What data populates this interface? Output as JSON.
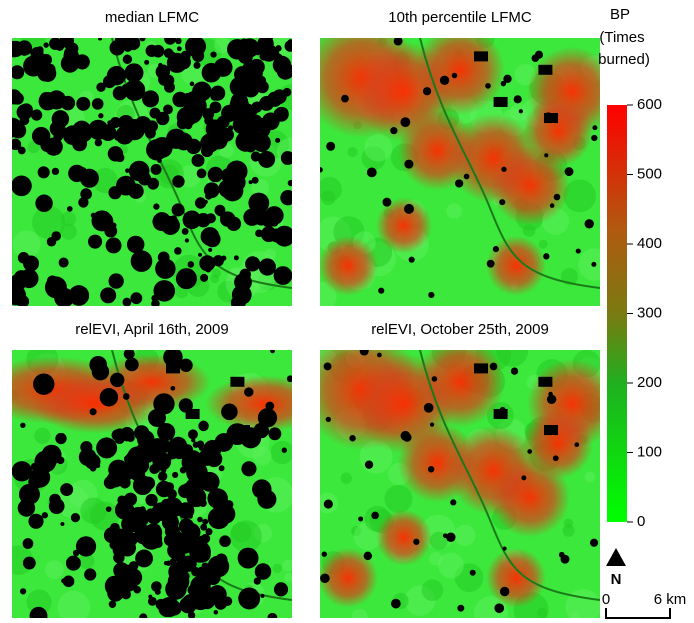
{
  "panels": [
    {
      "title": "median LFMC"
    },
    {
      "title": "10th percentile LFMC"
    },
    {
      "title": "relEVI, April 16th, 2009"
    },
    {
      "title": "relEVI, October 25th, 2009"
    }
  ],
  "colorbar": {
    "title_lines": [
      "BP",
      "(Times",
      "burned)"
    ],
    "lim": [
      0,
      600
    ],
    "ticks": [
      0,
      100,
      200,
      300,
      400,
      500,
      600
    ]
  },
  "north": "N",
  "scale": {
    "start": "0",
    "end": "6 km"
  }
}
